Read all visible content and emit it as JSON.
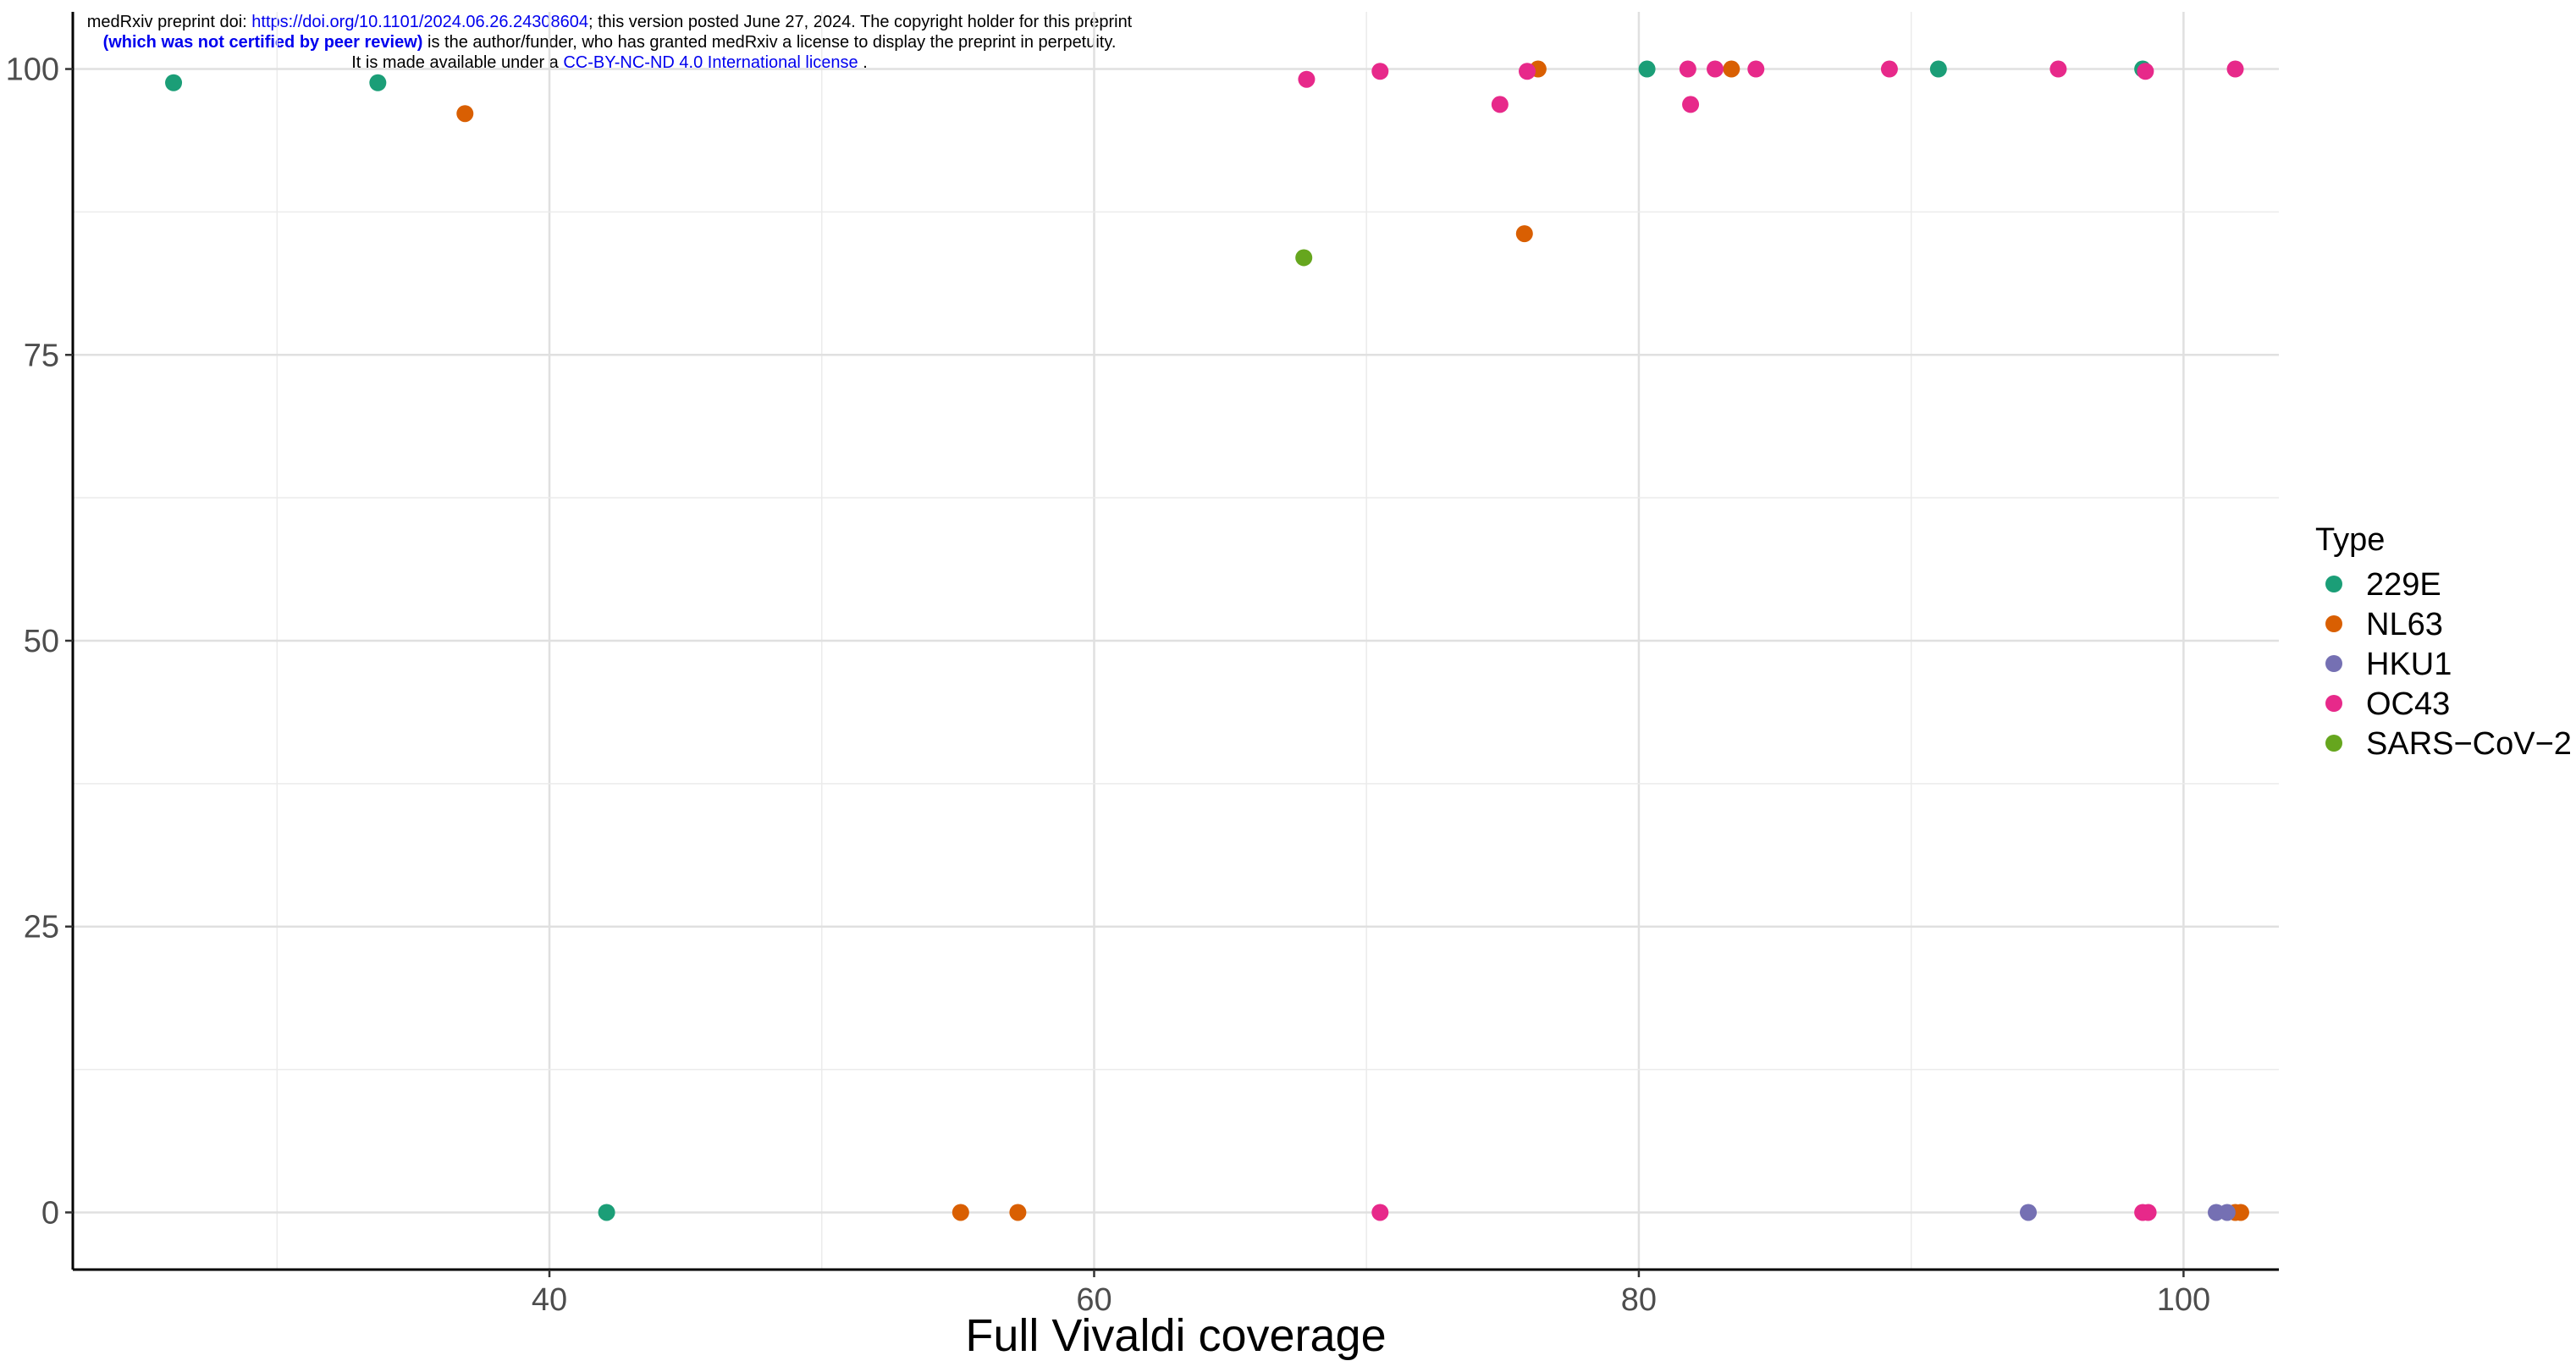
{
  "banner": {
    "line1_prefix": "medRxiv preprint doi: ",
    "line1_link": "https://doi.org/10.1101/2024.06.26.24308604",
    "line1_suffix": "; this version posted June 27, 2024. The copyright holder for this preprint",
    "line2_bold": "(which was not certified by peer review)",
    "line2_suffix": " is the author/funder, who has granted medRxiv a license to display the preprint in perpetuity.",
    "line3_prefix": "It is made available under a ",
    "line3_link": "CC-BY-NC-ND 4.0 International license",
    "line3_suffix": " ."
  },
  "chart_data": {
    "type": "scatter",
    "xlabel": "Full Vivaldi coverage",
    "ylabel": "",
    "xlim": [
      22.5,
      103.5
    ],
    "ylim": [
      -5,
      105
    ],
    "x_ticks": [
      40,
      60,
      80,
      100
    ],
    "y_ticks": [
      0,
      25,
      50,
      75,
      100
    ],
    "grid": true,
    "legend_title": "Type",
    "legend_position": "right",
    "series": [
      {
        "name": "229E",
        "color": "#1b9e77",
        "points": [
          [
            26.2,
            98.8
          ],
          [
            33.7,
            98.8
          ],
          [
            42.1,
            0
          ],
          [
            80.3,
            100
          ],
          [
            91.0,
            100
          ],
          [
            98.5,
            100
          ]
        ]
      },
      {
        "name": "NL63",
        "color": "#d95f02",
        "points": [
          [
            36.9,
            96.1
          ],
          [
            55.1,
            0
          ],
          [
            57.2,
            0
          ],
          [
            75.8,
            85.6
          ],
          [
            76.3,
            100
          ],
          [
            83.4,
            100
          ],
          [
            101.9,
            0
          ],
          [
            102.1,
            0
          ]
        ]
      },
      {
        "name": "HKU1",
        "color": "#7570b3",
        "points": [
          [
            94.3,
            0
          ],
          [
            101.2,
            0
          ],
          [
            101.6,
            0
          ]
        ]
      },
      {
        "name": "OC43",
        "color": "#e7298a",
        "points": [
          [
            67.8,
            99.1
          ],
          [
            70.5,
            99.8
          ],
          [
            70.5,
            0
          ],
          [
            74.9,
            96.9
          ],
          [
            75.9,
            99.8
          ],
          [
            81.8,
            100
          ],
          [
            81.9,
            96.9
          ],
          [
            82.8,
            100
          ],
          [
            84.3,
            100
          ],
          [
            89.2,
            100
          ],
          [
            95.4,
            100
          ],
          [
            98.5,
            0
          ],
          [
            98.6,
            99.8
          ],
          [
            98.7,
            0
          ],
          [
            101.9,
            100
          ]
        ]
      },
      {
        "name": "SARS−CoV−2",
        "color": "#66a61e",
        "points": [
          [
            67.7,
            83.5
          ]
        ]
      }
    ]
  }
}
